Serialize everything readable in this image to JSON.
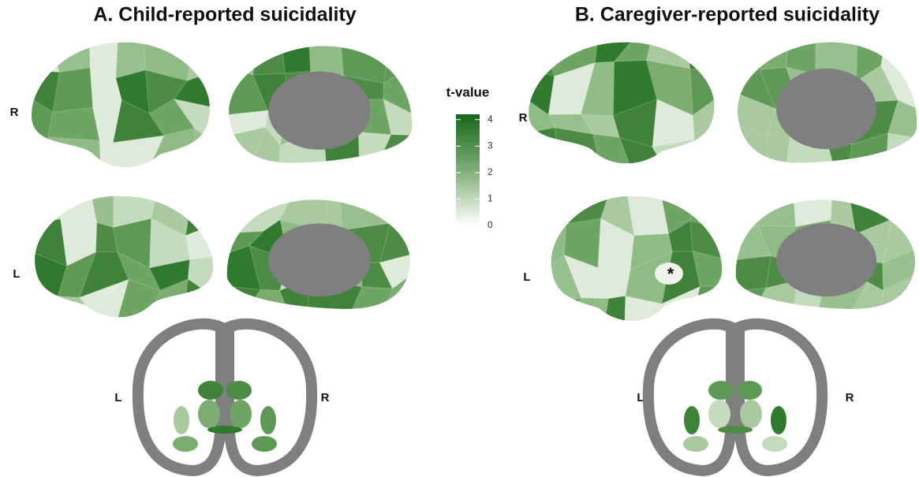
{
  "panels": [
    {
      "title": "A. Child-reported suicidality",
      "labels": {
        "top": "R",
        "bottom": "L",
        "coronal_left": "L",
        "coronal_right": "R"
      }
    },
    {
      "title": "B. Caregiver-reported suicidality",
      "labels": {
        "top": "R",
        "bottom": "L",
        "coronal_left": "L",
        "coronal_right": "R"
      },
      "annotation": "*"
    }
  ],
  "colorbar": {
    "title": "t-value",
    "lim": [
      0,
      4.2
    ],
    "ticks": [
      0,
      1,
      2,
      3,
      4
    ]
  }
}
